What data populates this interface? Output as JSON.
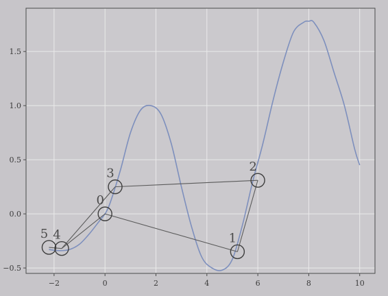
{
  "chart_data": {
    "type": "line",
    "xlim": [
      -3.1,
      10.6
    ],
    "ylim": [
      -0.55,
      1.9
    ],
    "grid": true,
    "x_ticks": [
      -2,
      0,
      2,
      4,
      6,
      8,
      10
    ],
    "x_tick_labels": [
      "−2",
      "0",
      "2",
      "4",
      "6",
      "8",
      "10"
    ],
    "y_ticks": [
      -0.5,
      0.0,
      0.5,
      1.0,
      1.5
    ],
    "y_tick_labels": [
      "−0.5",
      "0.0",
      "0.5",
      "1.0",
      "1.5"
    ],
    "curve": {
      "x": [
        -2.2,
        -1.8,
        -1.4,
        -1.0,
        -0.6,
        -0.2,
        0.0,
        0.2,
        0.6,
        1.0,
        1.4,
        1.8,
        2.2,
        2.6,
        3.0,
        3.4,
        3.8,
        4.2,
        4.6,
        5.0,
        5.4,
        5.8,
        6.2,
        6.6,
        7.0,
        7.4,
        7.8,
        8.0,
        8.2,
        8.6,
        9.0,
        9.4,
        9.8,
        10.0
      ],
      "y": [
        -0.33,
        -0.34,
        -0.33,
        -0.28,
        -0.18,
        -0.06,
        0.0,
        0.1,
        0.4,
        0.75,
        0.96,
        1.0,
        0.92,
        0.65,
        0.25,
        -0.12,
        -0.4,
        -0.5,
        -0.52,
        -0.42,
        -0.1,
        0.3,
        0.65,
        1.05,
        1.4,
        1.68,
        1.77,
        1.78,
        1.77,
        1.6,
        1.3,
        1.0,
        0.6,
        0.45
      ],
      "color": "#7d8fbd"
    },
    "points": [
      {
        "label": "0",
        "x": 0.0,
        "y": 0.0
      },
      {
        "label": "1",
        "x": 5.2,
        "y": -0.35
      },
      {
        "label": "2",
        "x": 6.0,
        "y": 0.31
      },
      {
        "label": "3",
        "x": 0.4,
        "y": 0.25
      },
      {
        "label": "4",
        "x": -1.7,
        "y": -0.32
      },
      {
        "label": "5",
        "x": -2.2,
        "y": -0.31
      }
    ],
    "path_order": [
      5,
      4,
      3,
      2,
      1,
      0,
      4
    ],
    "path_color": "#5a5a5a",
    "marker_color": "#3d3d3d"
  }
}
